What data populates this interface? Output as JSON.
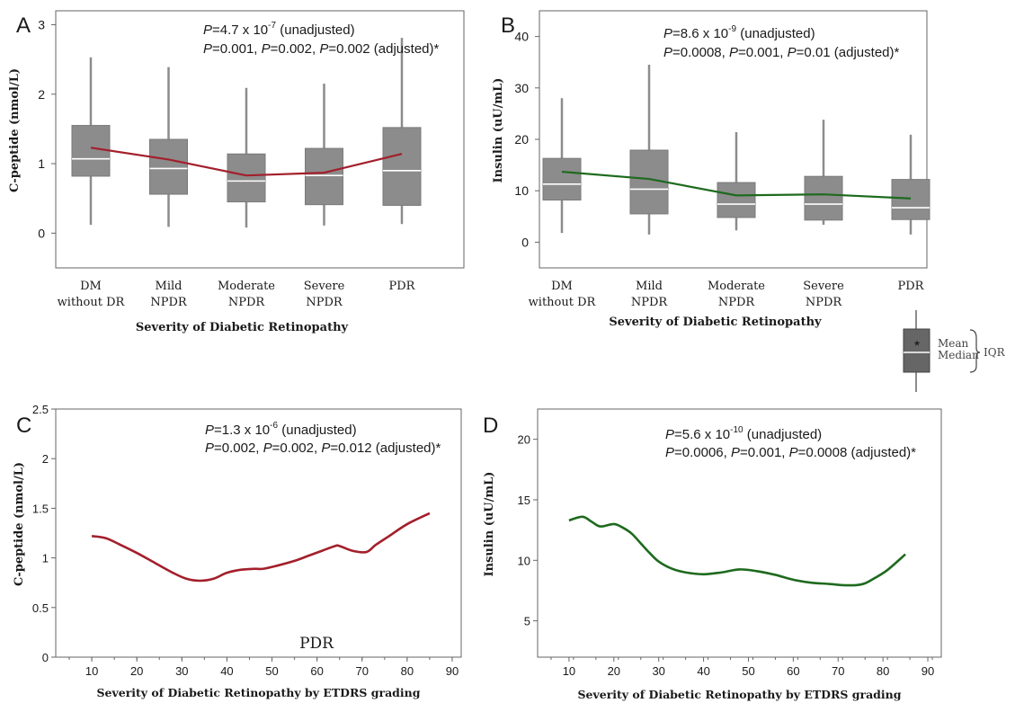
{
  "chart_data": [
    {
      "panel_letter": "A",
      "type": "box",
      "xlabel": "Severity of Diabetic Retinopathy",
      "ylabel": "C-peptide (nmol/L)",
      "ylim": [
        -0.5,
        3.2
      ],
      "yticks": [
        "0",
        "1",
        "2",
        "3"
      ],
      "categories": [
        [
          "DM",
          "without DR"
        ],
        [
          "Mild",
          "NPDR"
        ],
        [
          "Moderate",
          "NPDR"
        ],
        [
          "Severe",
          "NPDR"
        ],
        [
          "PDR"
        ]
      ],
      "boxes": [
        {
          "whisker_low": 0.12,
          "q1": 0.82,
          "median": 1.07,
          "q3": 1.55,
          "whisker_high": 2.53,
          "mean": 1.23
        },
        {
          "whisker_low": 0.09,
          "q1": 0.56,
          "median": 0.93,
          "q3": 1.35,
          "whisker_high": 2.39,
          "mean": 1.06
        },
        {
          "whisker_low": 0.08,
          "q1": 0.45,
          "median": 0.75,
          "q3": 1.14,
          "whisker_high": 2.09,
          "mean": 0.83
        },
        {
          "whisker_low": 0.11,
          "q1": 0.41,
          "median": 0.83,
          "q3": 1.22,
          "whisker_high": 2.15,
          "mean": 0.87
        },
        {
          "whisker_low": 0.13,
          "q1": 0.4,
          "median": 0.9,
          "q3": 1.52,
          "whisker_high": 2.81,
          "mean": 1.14
        }
      ],
      "mean_line_color": "#a31f2b",
      "p_unadjusted": {
        "prefix": "=4.7 x 10",
        "exp": "-7",
        "suffix": " (unadjusted)"
      },
      "p_adjusted": [
        "=0.001, ",
        "=0.002, ",
        "=0.002 (adjusted)*"
      ]
    },
    {
      "panel_letter": "B",
      "type": "box",
      "xlabel": "Severity of Diabetic Retinopathy",
      "ylabel": "Insulin (uU/mL)",
      "ylim": [
        -5,
        45
      ],
      "yticks": [
        "0",
        "10",
        "20",
        "30",
        "40"
      ],
      "categories": [
        [
          "DM",
          "without DR"
        ],
        [
          "Mild",
          "NPDR"
        ],
        [
          "Moderate",
          "NPDR"
        ],
        [
          "Severe",
          "NPDR"
        ],
        [
          "PDR"
        ]
      ],
      "boxes": [
        {
          "whisker_low": 1.8,
          "q1": 8.2,
          "median": 11.3,
          "q3": 16.3,
          "whisker_high": 28.0,
          "mean": 13.7
        },
        {
          "whisker_low": 1.5,
          "q1": 5.5,
          "median": 10.3,
          "q3": 17.9,
          "whisker_high": 34.5,
          "mean": 12.3
        },
        {
          "whisker_low": 2.3,
          "q1": 4.8,
          "median": 7.4,
          "q3": 11.6,
          "whisker_high": 21.4,
          "mean": 9.1
        },
        {
          "whisker_low": 3.4,
          "q1": 4.3,
          "median": 7.4,
          "q3": 12.8,
          "whisker_high": 23.8,
          "mean": 9.3
        },
        {
          "whisker_low": 1.5,
          "q1": 4.4,
          "median": 6.7,
          "q3": 12.2,
          "whisker_high": 20.9,
          "mean": 8.5
        }
      ],
      "mean_line_color": "#1e6a1e",
      "p_unadjusted": {
        "prefix": "=8.6 x 10",
        "exp": "-9",
        "suffix": " (unadjusted)"
      },
      "p_adjusted": [
        "=0.0008, ",
        "=0.001, ",
        "=0.01 (adjusted)*"
      ]
    },
    {
      "panel_letter": "C",
      "type": "line",
      "xlabel": "Severity of Diabetic Retinopathy by ETDRS grading",
      "ylabel": "C-peptide (nmol/L)",
      "xlim": [
        2,
        92
      ],
      "ylim": [
        0,
        2.5
      ],
      "xticks": [
        "10",
        "20",
        "30",
        "40",
        "50",
        "60",
        "70",
        "80",
        "90"
      ],
      "yticks": [
        "0",
        "0.5",
        "1",
        "1.5",
        "2",
        "2.5"
      ],
      "color": "#a31f2b",
      "x": [
        10,
        13,
        16,
        20,
        24,
        28,
        31,
        34,
        37,
        40,
        43,
        46,
        48,
        51,
        55,
        58,
        61,
        64,
        65,
        68,
        71,
        73,
        76,
        80,
        85
      ],
      "y": [
        1.22,
        1.2,
        1.14,
        1.05,
        0.95,
        0.85,
        0.79,
        0.77,
        0.79,
        0.85,
        0.88,
        0.89,
        0.89,
        0.92,
        0.97,
        1.02,
        1.07,
        1.12,
        1.12,
        1.07,
        1.06,
        1.13,
        1.22,
        1.34,
        1.45
      ],
      "annotation": "PDR",
      "p_unadjusted": {
        "prefix": "=1.3 x 10",
        "exp": "-6",
        "suffix": " (unadjusted)"
      },
      "p_adjusted": [
        "=0.002, ",
        "=0.002, ",
        "=0.012 (adjusted)*"
      ]
    },
    {
      "panel_letter": "D",
      "type": "line",
      "xlabel": "Severity of Diabetic Retinopathy by ETDRS grading",
      "ylabel": "Insulin (uU/mL)",
      "xlim": [
        3,
        93
      ],
      "ylim": [
        2,
        22.5
      ],
      "xticks": [
        "10",
        "20",
        "30",
        "40",
        "50",
        "60",
        "70",
        "80",
        "90"
      ],
      "yticks": [
        "5",
        "10",
        "15",
        "20"
      ],
      "color": "#1e6a1e",
      "x": [
        10,
        13,
        15,
        17,
        20,
        22,
        24,
        26,
        28,
        30,
        33,
        36,
        40,
        44,
        48,
        52,
        56,
        60,
        64,
        68,
        71,
        74,
        76,
        78,
        81,
        85
      ],
      "y": [
        13.3,
        13.6,
        13.2,
        12.8,
        13.0,
        12.7,
        12.2,
        11.4,
        10.6,
        9.9,
        9.3,
        9.0,
        8.85,
        9.0,
        9.25,
        9.1,
        8.8,
        8.4,
        8.15,
        8.05,
        7.95,
        7.95,
        8.1,
        8.5,
        9.2,
        10.5
      ],
      "p_unadjusted": {
        "prefix": "=5.6 x 10",
        "exp": "-10",
        "suffix": " (unadjusted)"
      },
      "p_adjusted": [
        "=0.0006, ",
        "=0.001, ",
        "=0.0008 (adjusted)*"
      ]
    }
  ],
  "legend": {
    "mean_symbol": "*",
    "mean_label": "Mean",
    "median_label": "Median",
    "iqr_label": "IQR"
  },
  "p_symbol": "P",
  "colors": {
    "box_fill": "#8c8c8c",
    "whisker": "#8c8c8c",
    "frame": "#666666",
    "text": "#1a1a1a"
  }
}
